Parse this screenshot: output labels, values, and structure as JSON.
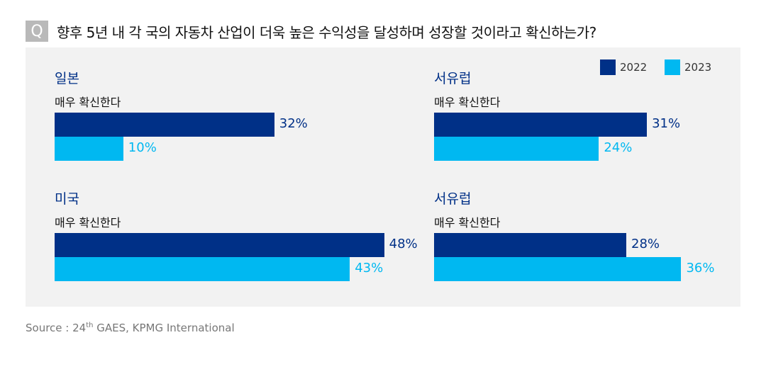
{
  "header": {
    "q_icon": "Q",
    "title": "향후 5년 내 각 국의 자동차 산업이 더욱 높은 수익성을 달성하며 성장할 것이라고 확신하는가?"
  },
  "colors": {
    "2022": "#003087",
    "2023": "#00b8f1",
    "panel": "#f2f2f2"
  },
  "chart_data": {
    "type": "bar",
    "orientation": "horizontal",
    "title": "향후 5년 내 각 국의 자동차 산업이 더욱 높은 수익성을 달성하며 성장할 것이라고 확신하는가?",
    "legend": [
      "2022",
      "2023"
    ],
    "legend_placement": "top-right",
    "unit": "%",
    "panels": [
      {
        "region": "일본",
        "category": "매우 확신한다",
        "values": {
          "2022": 32,
          "2023": 10
        },
        "labels": {
          "2022": "32%",
          "2023": "10%"
        }
      },
      {
        "region": "서유럽",
        "category": "매우 확신한다",
        "values": {
          "2022": 31,
          "2023": 24
        },
        "labels": {
          "2022": "31%",
          "2023": "24%"
        }
      },
      {
        "region": "미국",
        "category": "매우 확신한다",
        "values": {
          "2022": 48,
          "2023": 43
        },
        "labels": {
          "2022": "48%",
          "2023": "43%"
        }
      },
      {
        "region": "서유럽",
        "category": "매우 확신한다",
        "values": {
          "2022": 28,
          "2023": 36
        },
        "labels": {
          "2022": "28%",
          "2023": "36%"
        }
      }
    ]
  },
  "source": {
    "prefix": "Source : 24",
    "sup": "th",
    "suffix": " GAES, KPMG International"
  }
}
